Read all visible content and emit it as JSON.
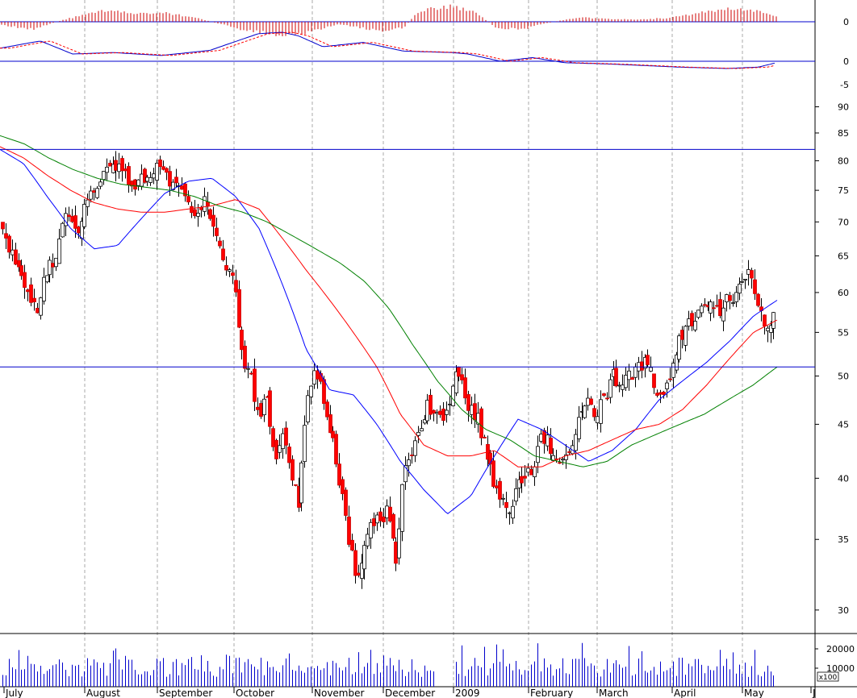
{
  "chart_data": {
    "type": "candlestick",
    "title": "",
    "x_labels": [
      "July",
      "August",
      "September",
      "October",
      "November",
      "December",
      "2009",
      "February",
      "March",
      "April",
      "May",
      "J"
    ],
    "price_axis": {
      "scale": "log",
      "ticks": [
        30,
        35,
        40,
        45,
        50,
        55,
        60,
        65,
        70,
        75,
        80,
        85,
        90
      ],
      "ylim": [
        28.5,
        92
      ]
    },
    "horizontal_lines": [
      82,
      51
    ],
    "moving_averages": [
      {
        "color": "#0000ff",
        "values": [
          82.0,
          79.5,
          74.0,
          69.0,
          66.0,
          66.5,
          70.5,
          74.5,
          76.5,
          77.0,
          74.0,
          69.0,
          61.0,
          53.0,
          48.5,
          48.0,
          45.0,
          41.5,
          39.0,
          37.0,
          38.5,
          42.0,
          45.5,
          44.5,
          43.0,
          41.5,
          42.5,
          44.5,
          47.5,
          49.5,
          51.5,
          54.0,
          57.0,
          59.0
        ]
      },
      {
        "color": "#ff0000",
        "values": [
          82.5,
          80.5,
          77.5,
          75.0,
          73.0,
          72.0,
          71.5,
          71.5,
          72.0,
          72.5,
          73.5,
          72.0,
          67.5,
          63.0,
          59.0,
          55.0,
          51.0,
          46.0,
          43.0,
          42.0,
          42.0,
          42.5,
          41.0,
          41.0,
          42.0,
          42.5,
          43.5,
          44.5,
          45.0,
          46.5,
          49.0,
          52.0,
          55.0,
          56.5
        ]
      },
      {
        "color": "#008000",
        "values": [
          84.5,
          83.0,
          80.5,
          78.5,
          77.0,
          76.0,
          75.5,
          75.0,
          74.0,
          72.5,
          71.5,
          70.0,
          68.0,
          66.0,
          64.0,
          61.5,
          58.0,
          53.5,
          49.5,
          46.5,
          44.5,
          43.5,
          42.0,
          41.5,
          41.0,
          41.5,
          43.0,
          44.0,
          45.0,
          46.0,
          47.5,
          49.0,
          51.0
        ]
      }
    ],
    "volume_axis": {
      "ticks": [
        20000,
        10000
      ],
      "multiplier_label": "x100"
    },
    "indicator_axes": {
      "histogram_zero": "0",
      "oscillator_labels": [
        "0",
        "-5"
      ]
    }
  }
}
